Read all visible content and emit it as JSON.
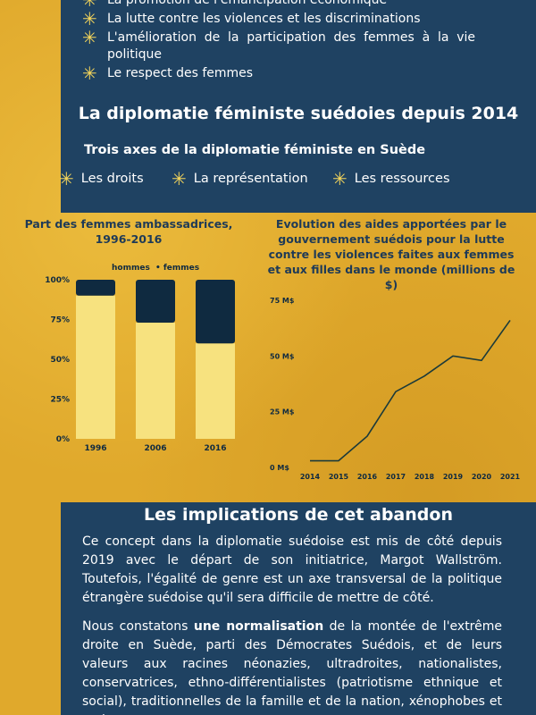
{
  "intro_bullets": [
    "La promotion de l'émancipation économique",
    "La lutte contre les violences et les discriminations",
    "L'amélioration de la participation des femmes à la vie politique",
    "Le respect des femmes"
  ],
  "section1": {
    "title": "La diplomatie féministe suédoies depuis 2014",
    "subtitle": "Trois axes de la diplomatie féministe en Suède",
    "axes": [
      "Les droits",
      "La représentation",
      "Les ressources"
    ]
  },
  "colors": {
    "navy": "#1f4262",
    "dark": "#0f2a40",
    "cream": "#f7e27f",
    "gold": "#e0a92c",
    "star": "#f3d45a"
  },
  "chart_data": [
    {
      "type": "bar",
      "title": "Part des femmes ambassadrices, 1996-2016",
      "categories": [
        "1996",
        "2006",
        "2016"
      ],
      "series": [
        {
          "name": "hommes",
          "values": [
            90,
            73,
            60
          ]
        },
        {
          "name": "femmes",
          "values": [
            10,
            27,
            40
          ]
        }
      ],
      "y_ticks": [
        "0%",
        "25%",
        "50%",
        "75%",
        "100%"
      ],
      "ylim": [
        0,
        100
      ],
      "stacked": true,
      "legend_position": "top"
    },
    {
      "type": "line",
      "title": "Evolution des aides apportées par le gouvernement suédois pour la lutte contre les violences faites aux femmes et aux filles dans le monde (millions de $)",
      "x": [
        "2014",
        "2015",
        "2016",
        "2017",
        "2018",
        "2019",
        "2020",
        "2021"
      ],
      "values": [
        3,
        3,
        14,
        34,
        41,
        50,
        48,
        66
      ],
      "y_ticks": [
        "0 M$",
        "25 M$",
        "50 M$",
        "75 M$"
      ],
      "ylim": [
        0,
        75
      ]
    }
  ],
  "section2": {
    "title": "Les implications de cet abandon",
    "p1": "Ce concept dans la diplomatie suédoise est mis de côté depuis 2019 avec le départ de son initiatrice, Margot Wallström. Toutefois, l'égalité de genre est un axe transversal de la politique étrangère suédoise qu'il sera difficile de mettre de côté.",
    "p2_before": "Nous constatons ",
    "p2_bold": "une normalisation",
    "p2_after": " de la montée de l'extrême droite en Suède, parti des Démocrates Suédois, et de leurs valeurs aux racines néonazies, ultradroites, nationalistes, conservatrices, ethno-différentialistes (patriotisme ethnique et social), traditionnelles de la famille et de la nation, xénophobes et racistes."
  }
}
